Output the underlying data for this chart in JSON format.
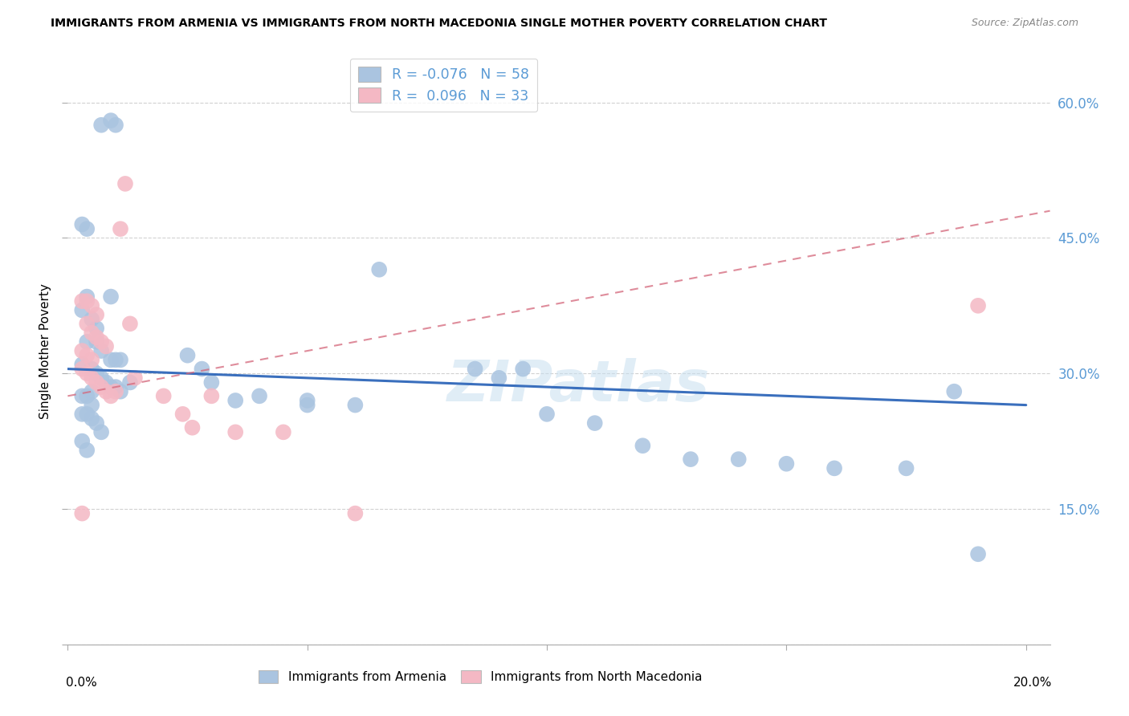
{
  "title": "IMMIGRANTS FROM ARMENIA VS IMMIGRANTS FROM NORTH MACEDONIA SINGLE MOTHER POVERTY CORRELATION CHART",
  "source": "Source: ZipAtlas.com",
  "ylabel": "Single Mother Poverty",
  "ytick_vals": [
    0.0,
    0.15,
    0.3,
    0.45,
    0.6
  ],
  "ytick_labels": [
    "",
    "15.0%",
    "30.0%",
    "45.0%",
    "60.0%"
  ],
  "xlim": [
    0.0,
    0.205
  ],
  "ylim": [
    0.0,
    0.65
  ],
  "watermark": "ZIPatlas",
  "legend_armenia_r": "-0.076",
  "legend_armenia_n": "58",
  "legend_macedonia_r": "0.096",
  "legend_macedonia_n": "33",
  "armenia_color": "#aac4e0",
  "armenia_line_color": "#3a6fbd",
  "macedonia_color": "#f4b8c4",
  "macedonia_line_color": "#d4667a",
  "background_color": "#ffffff",
  "grid_color": "#cccccc",
  "armenia_x": [
    0.007,
    0.009,
    0.01,
    0.003,
    0.004,
    0.004,
    0.009,
    0.003,
    0.005,
    0.006,
    0.004,
    0.006,
    0.007,
    0.009,
    0.01,
    0.011,
    0.003,
    0.005,
    0.006,
    0.007,
    0.008,
    0.009,
    0.01,
    0.011,
    0.013,
    0.003,
    0.004,
    0.005,
    0.003,
    0.004,
    0.005,
    0.006,
    0.007,
    0.003,
    0.004,
    0.025,
    0.028,
    0.03,
    0.04,
    0.005,
    0.05,
    0.06,
    0.065,
    0.085,
    0.09,
    0.095,
    0.1,
    0.11,
    0.12,
    0.13,
    0.14,
    0.15,
    0.16,
    0.175,
    0.185,
    0.19,
    0.05,
    0.035
  ],
  "armenia_y": [
    0.575,
    0.58,
    0.575,
    0.465,
    0.46,
    0.385,
    0.385,
    0.37,
    0.36,
    0.35,
    0.335,
    0.335,
    0.325,
    0.315,
    0.315,
    0.315,
    0.31,
    0.305,
    0.3,
    0.295,
    0.29,
    0.285,
    0.285,
    0.28,
    0.29,
    0.275,
    0.275,
    0.265,
    0.255,
    0.255,
    0.25,
    0.245,
    0.235,
    0.225,
    0.215,
    0.32,
    0.305,
    0.29,
    0.275,
    0.28,
    0.265,
    0.265,
    0.415,
    0.305,
    0.295,
    0.305,
    0.255,
    0.245,
    0.22,
    0.205,
    0.205,
    0.2,
    0.195,
    0.195,
    0.28,
    0.1,
    0.27,
    0.27
  ],
  "macedonia_x": [
    0.003,
    0.004,
    0.005,
    0.006,
    0.004,
    0.005,
    0.006,
    0.007,
    0.008,
    0.003,
    0.004,
    0.005,
    0.003,
    0.004,
    0.005,
    0.006,
    0.007,
    0.008,
    0.009,
    0.01,
    0.011,
    0.012,
    0.013,
    0.014,
    0.02,
    0.024,
    0.026,
    0.03,
    0.035,
    0.045,
    0.06,
    0.003,
    0.19
  ],
  "macedonia_y": [
    0.38,
    0.38,
    0.375,
    0.365,
    0.355,
    0.345,
    0.34,
    0.335,
    0.33,
    0.325,
    0.32,
    0.315,
    0.305,
    0.3,
    0.295,
    0.29,
    0.285,
    0.28,
    0.275,
    0.28,
    0.46,
    0.51,
    0.355,
    0.295,
    0.275,
    0.255,
    0.24,
    0.275,
    0.235,
    0.235,
    0.145,
    0.145,
    0.375
  ]
}
